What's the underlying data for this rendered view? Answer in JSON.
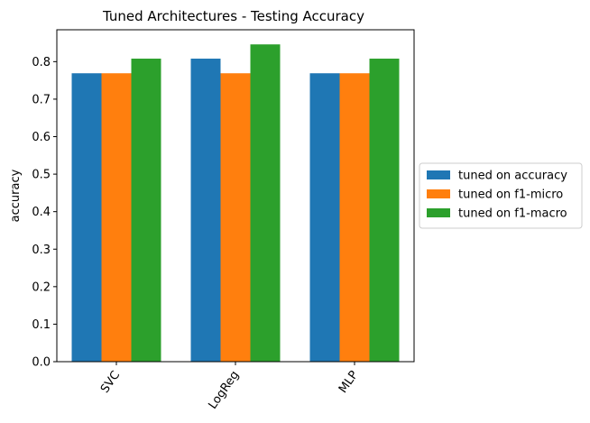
{
  "chart_data": {
    "type": "bar",
    "title": "Tuned Architectures - Testing Accuracy",
    "xlabel": "",
    "ylabel": "accuracy",
    "categories": [
      "SVC",
      "LogReg",
      "MLP"
    ],
    "series": [
      {
        "name": "tuned on accuracy",
        "values": [
          0.769,
          0.808,
          0.769
        ],
        "color": "#1f77b4"
      },
      {
        "name": "tuned on f1-micro",
        "values": [
          0.769,
          0.769,
          0.769
        ],
        "color": "#ff7f0e"
      },
      {
        "name": "tuned on f1-macro",
        "values": [
          0.808,
          0.846,
          0.808
        ],
        "color": "#2ca02c"
      }
    ],
    "ylim": [
      0,
      0.885
    ],
    "yticks": [
      0.0,
      0.1,
      0.2,
      0.3,
      0.4,
      0.5,
      0.6,
      0.7,
      0.8
    ],
    "ytick_labels": [
      "0.0",
      "0.1",
      "0.2",
      "0.3",
      "0.4",
      "0.5",
      "0.6",
      "0.7",
      "0.8"
    ],
    "grid": false,
    "legend_position": "center-right-outside"
  }
}
